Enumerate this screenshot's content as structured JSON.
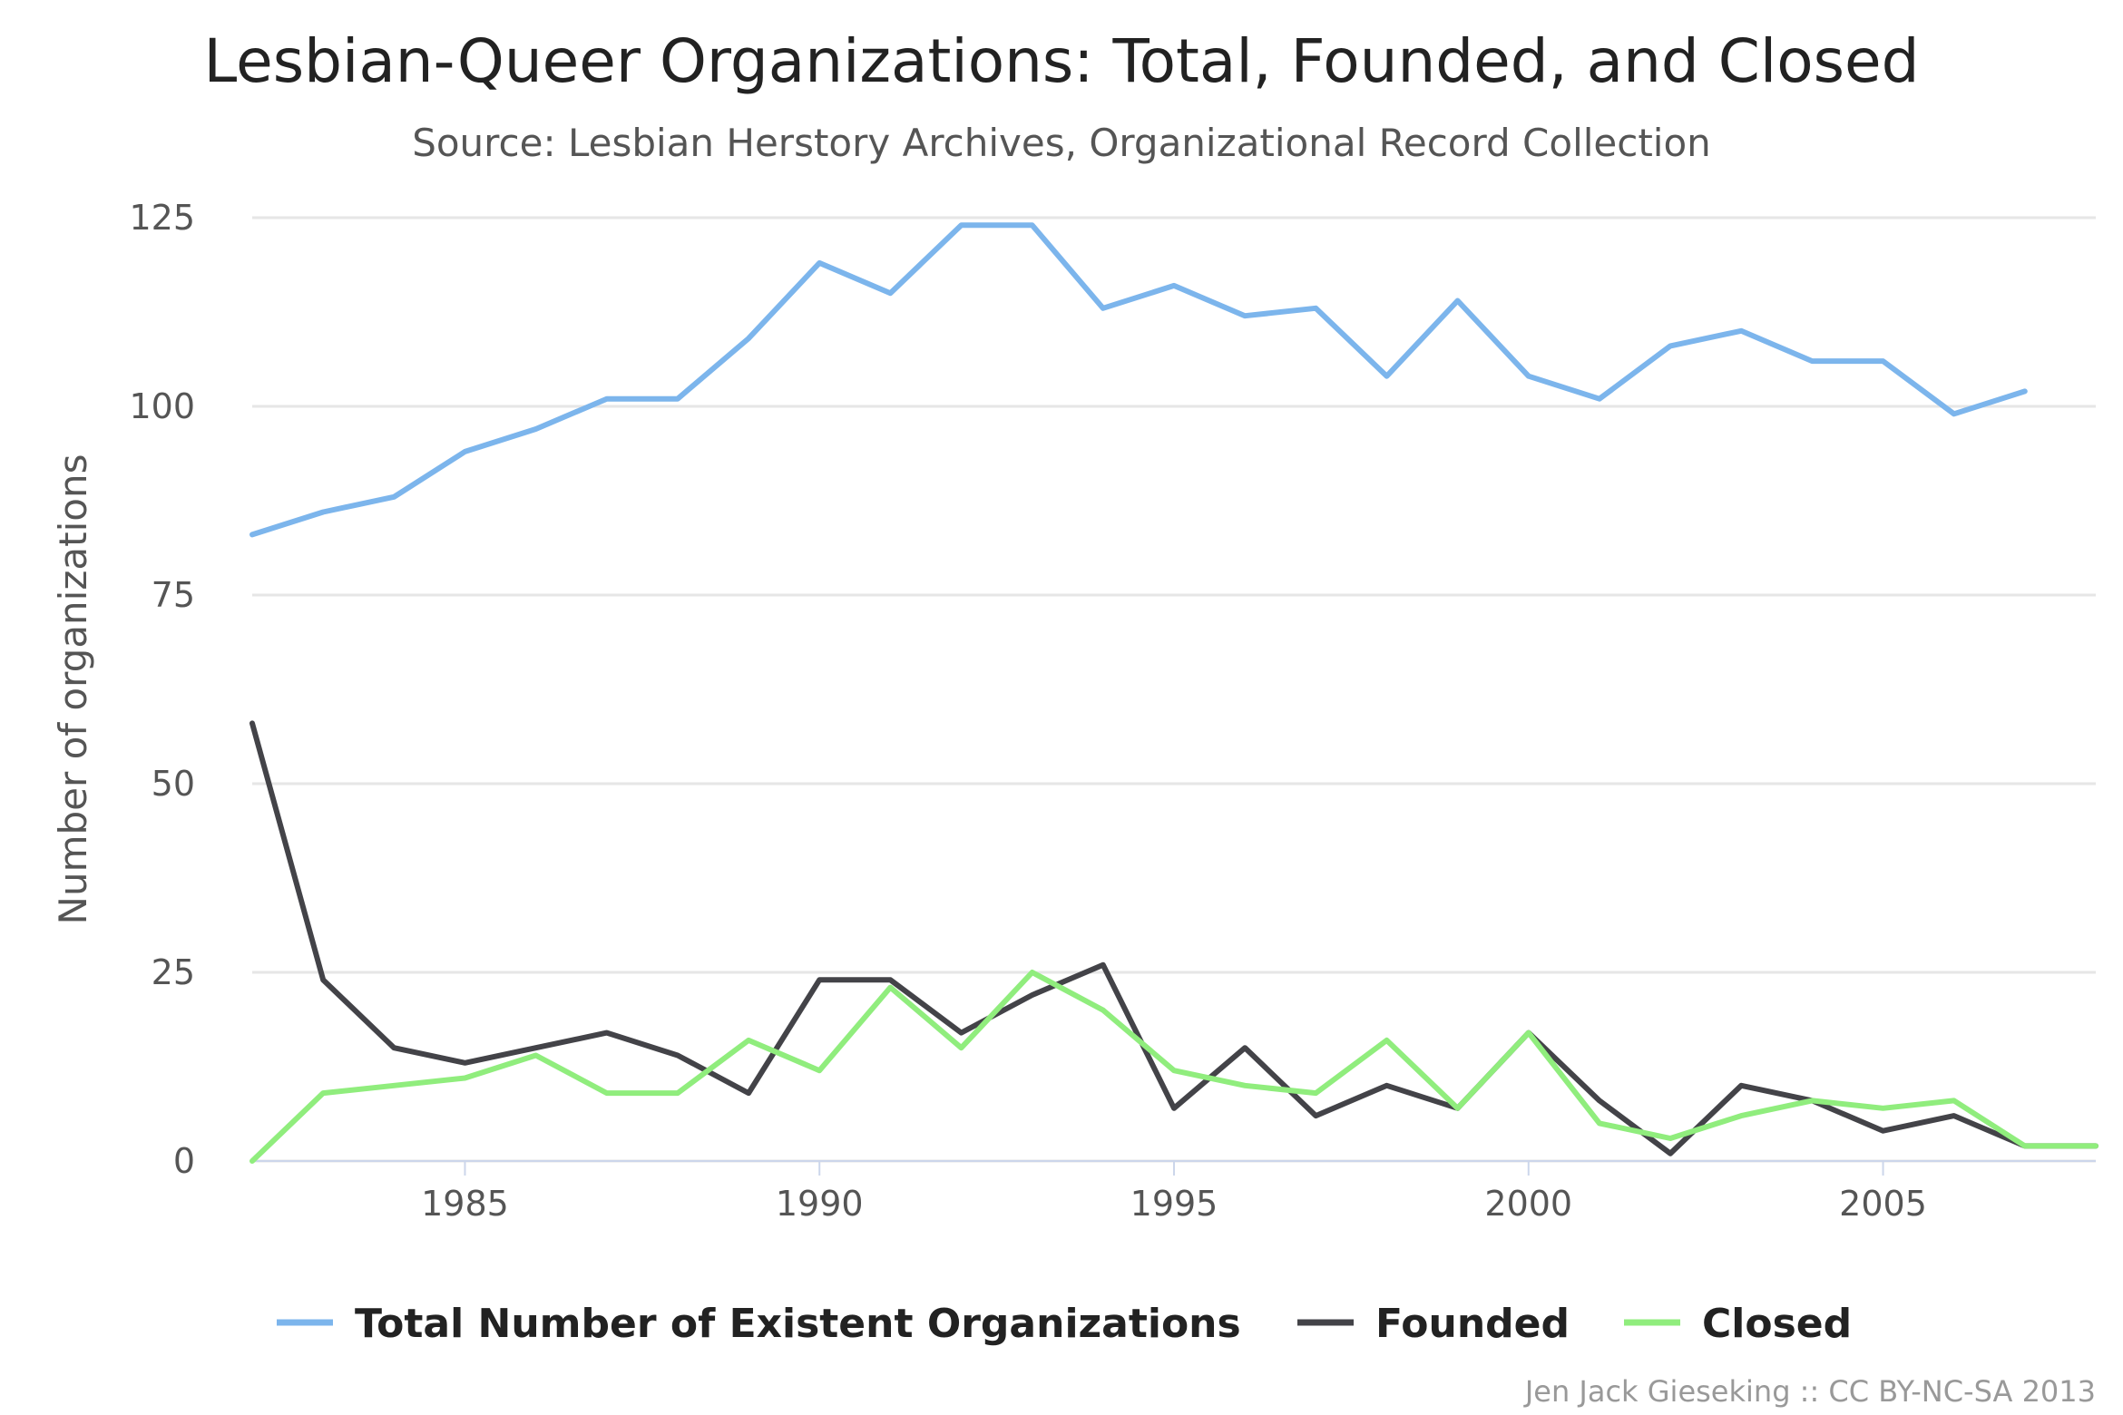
{
  "chart_data": {
    "type": "line",
    "title": "Lesbian-Queer Organizations: Total, Founded, and Closed",
    "subtitle": "Source: Lesbian Herstory Archives, Organizational Record Collection",
    "xlabel": "",
    "ylabel": "Number of organizations",
    "xlim": [
      1982,
      2008
    ],
    "ylim": [
      0,
      125
    ],
    "x_ticks": [
      1985,
      1990,
      1995,
      2000,
      2005
    ],
    "y_ticks": [
      0,
      25,
      50,
      75,
      100,
      125
    ],
    "grid": true,
    "legend_position": "bottom",
    "x": [
      1982,
      1983,
      1984,
      1985,
      1986,
      1987,
      1988,
      1989,
      1990,
      1991,
      1992,
      1993,
      1994,
      1995,
      1996,
      1997,
      1998,
      1999,
      2000,
      2001,
      2002,
      2003,
      2004,
      2005,
      2006,
      2007,
      2008
    ],
    "series": [
      {
        "name": "Total Number of Existent Organizations",
        "color": "#7cb5ec",
        "values": [
          83,
          86,
          88,
          94,
          97,
          101,
          101,
          109,
          119,
          115,
          124,
          124,
          113,
          116,
          112,
          113,
          104,
          114,
          104,
          101,
          108,
          110,
          106,
          106,
          99,
          102,
          null
        ]
      },
      {
        "name": "Founded",
        "color": "#434348",
        "values": [
          58,
          24,
          15,
          13,
          15,
          17,
          14,
          9,
          24,
          24,
          17,
          22,
          26,
          7,
          15,
          6,
          10,
          7,
          17,
          8,
          1,
          10,
          8,
          4,
          6,
          2,
          2
        ]
      },
      {
        "name": "Closed",
        "color": "#90ed7d",
        "values": [
          0,
          9,
          10,
          11,
          14,
          9,
          9,
          16,
          12,
          23,
          15,
          25,
          20,
          12,
          10,
          9,
          16,
          7,
          17,
          5,
          3,
          6,
          8,
          7,
          8,
          2,
          2
        ]
      }
    ],
    "credit": "Jen Jack Gieseking :: CC BY-NC-SA 2013"
  }
}
